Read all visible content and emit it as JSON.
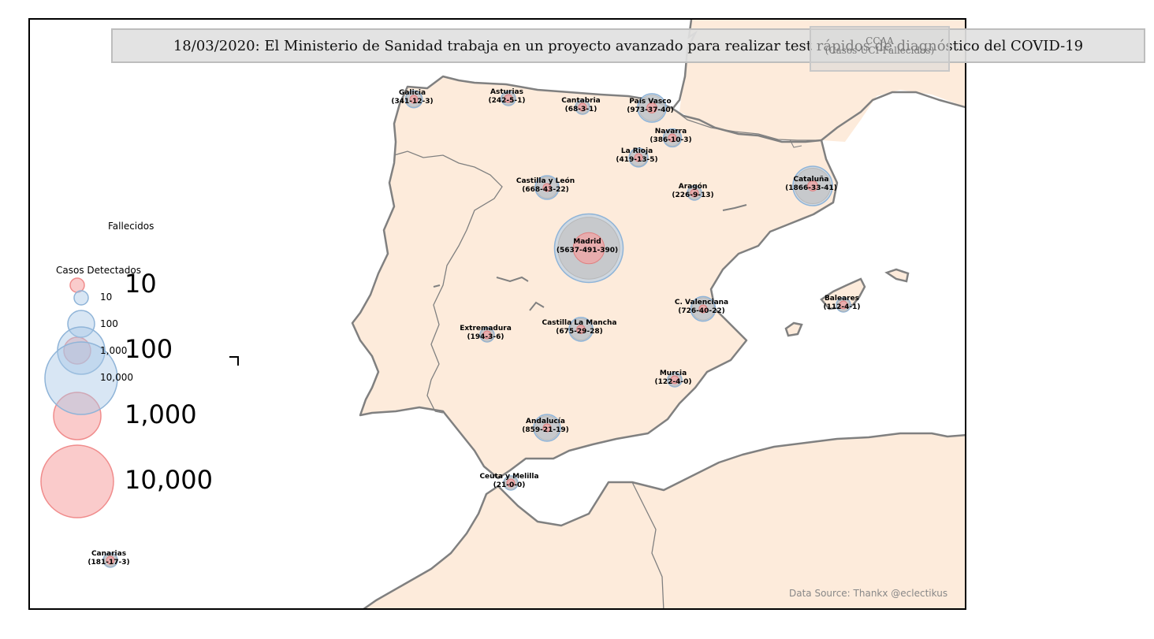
{
  "headline": "18/03/2020: El Ministerio de Sanidad trabaja en un proyecto avanzado para realizar test rápidos de diagnóstico del COVID-19",
  "ccaa_box": {
    "title": "CCAA",
    "subtitle": "(Casos-UCI-Fallecidos)"
  },
  "source": "Data Source: Thankx @eclectikus",
  "legend": {
    "fallecidos_title": "Fallecidos",
    "casos_title": "Casos Detectados",
    "fallecidos_labels": [
      "10",
      "100",
      "1,000",
      "10,000"
    ],
    "casos_labels": [
      "10",
      "100",
      "1,000",
      "10,000"
    ]
  },
  "colors": {
    "land_spain": "#fdebdb",
    "border": "#808080",
    "casos_fill": "#a9c8e6",
    "fallecidos_fill": "#f5a0a0",
    "uci_fill": "#c4c4c4"
  },
  "regions": [
    {
      "name": "Galicia",
      "stats": "(341-12-3)"
    },
    {
      "name": "Asturias",
      "stats": "(242-5-1)"
    },
    {
      "name": "Cantabria",
      "stats": "(68-3-1)"
    },
    {
      "name": "País Vasco",
      "stats": "(973-37-40)"
    },
    {
      "name": "Navarra",
      "stats": "(386-10-3)"
    },
    {
      "name": "La Rioja",
      "stats": "(419-13-5)"
    },
    {
      "name": "Castilla y León",
      "stats": "(668-43-22)"
    },
    {
      "name": "Aragón",
      "stats": "(226-9-13)"
    },
    {
      "name": "Cataluña",
      "stats": "(1866-33-41)"
    },
    {
      "name": "Madrid",
      "stats": "(5637-491-390)"
    },
    {
      "name": "C. Valenciana",
      "stats": "(726-40-22)"
    },
    {
      "name": "Baleares",
      "stats": "(112-4-1)"
    },
    {
      "name": "Extremadura",
      "stats": "(194-3-6)"
    },
    {
      "name": "Castilla La Mancha",
      "stats": "(675-29-28)"
    },
    {
      "name": "Murcia",
      "stats": "(122-4-0)"
    },
    {
      "name": "Andalucía",
      "stats": "(859-21-19)"
    },
    {
      "name": "Ceuta y Melilla",
      "stats": "(21-0-0)"
    },
    {
      "name": "Canarias",
      "stats": "(181-17-3)"
    }
  ]
}
